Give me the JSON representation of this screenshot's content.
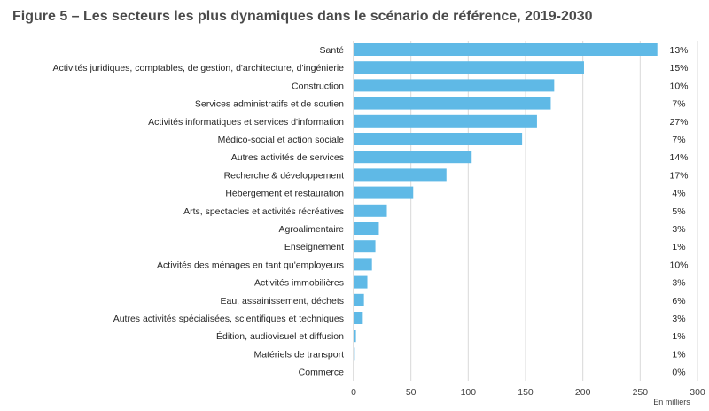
{
  "chart_data": {
    "type": "bar",
    "orientation": "horizontal",
    "title": "Figure 5 – Les secteurs les plus dynamiques dans le scénario de référence, 2019-2030",
    "x_unit_label": "En milliers",
    "xlim": [
      0,
      300
    ],
    "x_ticks": [
      "0",
      "50",
      "100",
      "150",
      "200",
      "250",
      "300"
    ],
    "grid": true,
    "bar_color": "#5fb9e6",
    "categories": [
      "Santé",
      "Activités juridiques, comptables, de gestion, d'architecture, d'ingénierie",
      "Construction",
      "Services administratifs et de soutien",
      "Activités informatiques et services d'information",
      "Médico-social et action sociale",
      "Autres activités de services",
      "Recherche & développement",
      "Hébergement et restauration",
      "Arts, spectacles et activités récréatives",
      "Agroalimentaire",
      "Enseignement",
      "Activités des ménages en tant qu'employeurs",
      "Activités immobilières",
      "Eau, assainissement, déchets",
      "Autres activités spécialisées, scientifiques et techniques",
      "Édition, audiovisuel et diffusion",
      "Matériels de transport",
      "Commerce"
    ],
    "values": [
      265,
      201,
      175,
      172,
      160,
      147,
      103,
      81,
      52,
      29,
      22,
      19,
      16,
      12,
      9,
      8,
      2,
      1,
      0
    ],
    "percent_labels": [
      "13%",
      "15%",
      "10%",
      "7%",
      "27%",
      "7%",
      "14%",
      "17%",
      "4%",
      "5%",
      "3%",
      "1%",
      "10%",
      "3%",
      "6%",
      "3%",
      "1%",
      "1%",
      "0%"
    ]
  }
}
